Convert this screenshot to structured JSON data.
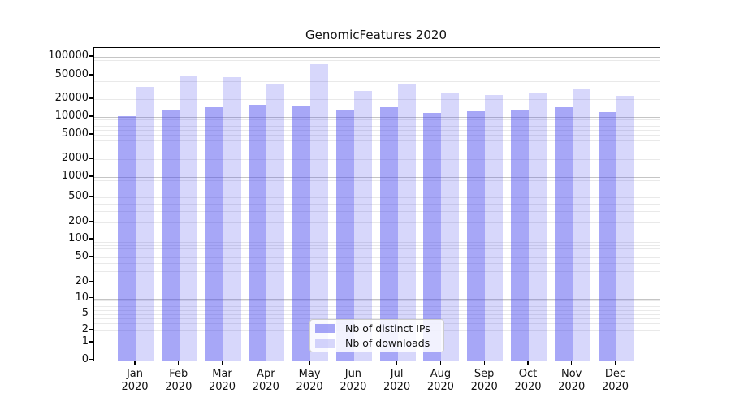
{
  "chart_data": {
    "type": "bar",
    "title": "GenomicFeatures 2020",
    "y_scale": "symlog",
    "y_ticks": [
      0,
      1,
      2,
      5,
      10,
      20,
      50,
      100,
      200,
      500,
      1000,
      2000,
      5000,
      10000,
      20000,
      50000,
      100000
    ],
    "ylim": [
      0,
      100000
    ],
    "grid": "on",
    "categories_line1": [
      "Jan",
      "Feb",
      "Mar",
      "Apr",
      "May",
      "Jun",
      "Jul",
      "Aug",
      "Sep",
      "Oct",
      "Nov",
      "Dec"
    ],
    "categories_line2": "2020",
    "series": [
      {
        "name": "Nb of distinct IPs",
        "color": "#4444ee",
        "opacity": 0.47,
        "values": [
          10300,
          13100,
          14400,
          15900,
          15000,
          13200,
          14700,
          11700,
          12400,
          13300,
          14400,
          12200
        ]
      },
      {
        "name": "Nb of downloads",
        "color": "#4444ee",
        "opacity": 0.21,
        "values": [
          32500,
          48000,
          47500,
          35500,
          76000,
          27300,
          35700,
          25700,
          23500,
          25400,
          30600,
          23000
        ]
      }
    ],
    "legend": {
      "position": "lower-center",
      "items": [
        "Nb of distinct IPs",
        "Nb of downloads"
      ]
    },
    "colors": {
      "bar_base": "#4444ee",
      "grid_major": "#c5c5c5",
      "grid_minor": "#e9e9e9",
      "axis": "#000000",
      "text": "#111111"
    }
  }
}
